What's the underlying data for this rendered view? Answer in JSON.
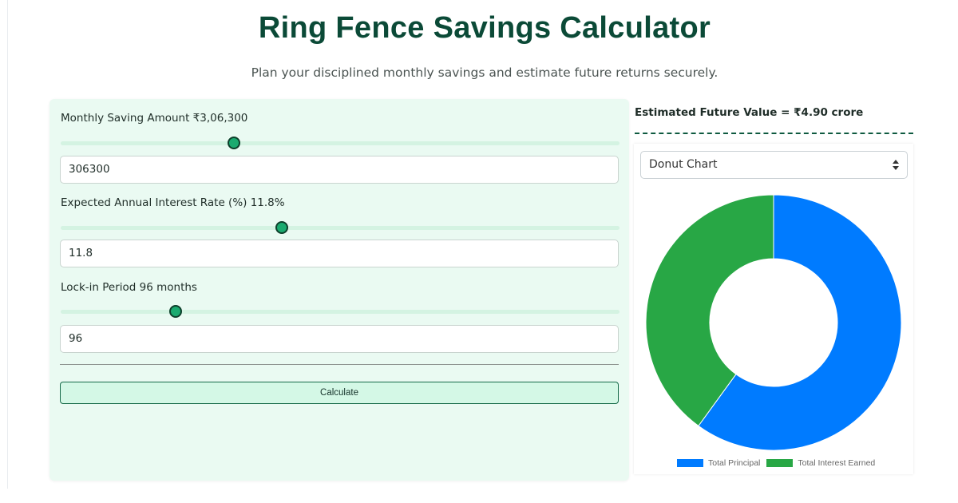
{
  "header": {
    "title": "Ring Fence Savings Calculator",
    "subtitle": "Plan your disciplined monthly savings and estimate future returns securely."
  },
  "form": {
    "monthly": {
      "label": "Monthly Saving Amount ₹3,06,300",
      "value": "306300",
      "slider_fraction": 0.31
    },
    "rate": {
      "label": "Expected Annual Interest Rate (%) 11.8%",
      "value": "11.8",
      "slider_fraction": 0.395
    },
    "period": {
      "label": "Lock-in Period 96 months",
      "value": "96",
      "slider_fraction": 0.205
    },
    "calculate_label": "Calculate"
  },
  "result": {
    "label": "Estimated Future Value = ₹4.90 crore"
  },
  "chart_select": {
    "value": "Donut Chart"
  },
  "chart_data": {
    "type": "pie",
    "style": "donut",
    "series": [
      {
        "name": "Total Principal",
        "value": 29404800,
        "color": "#007bff"
      },
      {
        "name": "Total Interest Earned",
        "value": 19595200,
        "color": "#28a745"
      }
    ],
    "legend_position": "bottom"
  },
  "colors": {
    "title": "#0b4a37",
    "panel_bg": "#eafaf2",
    "slider_thumb": "#1aaa6f",
    "button_bg": "#d4f8e6"
  }
}
